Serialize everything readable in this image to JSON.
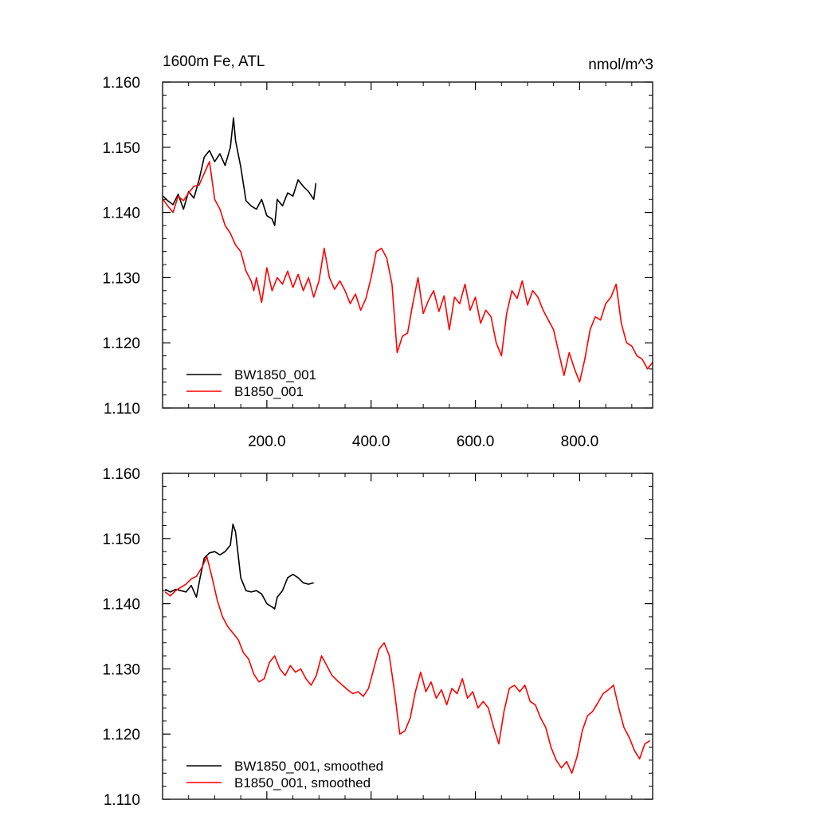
{
  "chart_data": [
    {
      "type": "line",
      "title": "1600m Fe, ATL",
      "units": "nmol/m^3",
      "xlim": [
        0,
        940
      ],
      "ylim": [
        1.11,
        1.16
      ],
      "yticks": [
        "1.160",
        "1.150",
        "1.140",
        "1.130",
        "1.120",
        "1.110"
      ],
      "xticks": [
        "200.0",
        "400.0",
        "600.0",
        "800.0"
      ],
      "legend_position": "bottom-left",
      "series": [
        {
          "name": "BW1850_001",
          "color": "#000000",
          "x": [
            1,
            10,
            20,
            30,
            40,
            50,
            60,
            70,
            80,
            90,
            100,
            110,
            120,
            130,
            136,
            140,
            150,
            160,
            170,
            180,
            190,
            200,
            210,
            215,
            220,
            230,
            240,
            250,
            260,
            270,
            280,
            290,
            294
          ],
          "y": [
            1.1425,
            1.1418,
            1.1412,
            1.1428,
            1.1405,
            1.1432,
            1.1422,
            1.145,
            1.1485,
            1.1495,
            1.1478,
            1.149,
            1.1472,
            1.15,
            1.1545,
            1.151,
            1.147,
            1.1418,
            1.141,
            1.1405,
            1.142,
            1.1395,
            1.139,
            1.138,
            1.142,
            1.141,
            1.143,
            1.1425,
            1.145,
            1.144,
            1.1432,
            1.142,
            1.1445
          ]
        },
        {
          "name": "B1850_001",
          "color": "#ff0000",
          "x": [
            1,
            10,
            20,
            30,
            40,
            50,
            60,
            70,
            80,
            90,
            100,
            110,
            120,
            130,
            140,
            150,
            160,
            170,
            175,
            180,
            190,
            200,
            210,
            220,
            230,
            240,
            250,
            260,
            270,
            280,
            290,
            300,
            310,
            320,
            330,
            340,
            350,
            360,
            370,
            380,
            390,
            400,
            410,
            420,
            430,
            440,
            450,
            460,
            470,
            480,
            490,
            500,
            510,
            520,
            530,
            540,
            550,
            560,
            570,
            580,
            590,
            600,
            610,
            620,
            630,
            640,
            650,
            660,
            670,
            680,
            690,
            700,
            710,
            720,
            730,
            740,
            750,
            760,
            770,
            780,
            790,
            800,
            810,
            820,
            830,
            840,
            850,
            860,
            870,
            880,
            890,
            900,
            910,
            920,
            930,
            940
          ],
          "y": [
            1.142,
            1.141,
            1.14,
            1.1425,
            1.1418,
            1.143,
            1.144,
            1.1442,
            1.146,
            1.1478,
            1.142,
            1.1405,
            1.138,
            1.1368,
            1.135,
            1.134,
            1.131,
            1.1295,
            1.128,
            1.13,
            1.1262,
            1.1315,
            1.128,
            1.13,
            1.129,
            1.131,
            1.1285,
            1.1305,
            1.128,
            1.13,
            1.127,
            1.1295,
            1.1345,
            1.13,
            1.1282,
            1.1295,
            1.128,
            1.126,
            1.1275,
            1.125,
            1.1268,
            1.13,
            1.134,
            1.1345,
            1.133,
            1.129,
            1.1185,
            1.121,
            1.1215,
            1.126,
            1.13,
            1.1245,
            1.1265,
            1.128,
            1.1248,
            1.1272,
            1.122,
            1.127,
            1.126,
            1.129,
            1.125,
            1.127,
            1.123,
            1.125,
            1.124,
            1.12,
            1.118,
            1.1245,
            1.128,
            1.1268,
            1.1295,
            1.1258,
            1.128,
            1.127,
            1.125,
            1.1235,
            1.122,
            1.1185,
            1.115,
            1.1185,
            1.116,
            1.114,
            1.1175,
            1.122,
            1.124,
            1.1235,
            1.126,
            1.127,
            1.129,
            1.123,
            1.12,
            1.1195,
            1.118,
            1.1175,
            1.116,
            1.117
          ]
        }
      ]
    },
    {
      "type": "line",
      "xlim": [
        0,
        940
      ],
      "ylim": [
        1.11,
        1.16
      ],
      "yticks": [
        "1.160",
        "1.150",
        "1.140",
        "1.130",
        "1.120",
        "1.110"
      ],
      "legend_position": "bottom-left",
      "series": [
        {
          "name": "BW1850_001, smoothed",
          "color": "#000000",
          "x": [
            5,
            15,
            25,
            35,
            45,
            55,
            65,
            72,
            80,
            90,
            100,
            110,
            120,
            130,
            135,
            140,
            150,
            160,
            170,
            180,
            190,
            200,
            210,
            215,
            220,
            230,
            240,
            250,
            260,
            270,
            280,
            290
          ],
          "y": [
            1.1422,
            1.1418,
            1.1422,
            1.142,
            1.1418,
            1.1428,
            1.141,
            1.144,
            1.147,
            1.1478,
            1.148,
            1.1475,
            1.148,
            1.149,
            1.1522,
            1.151,
            1.144,
            1.142,
            1.1418,
            1.142,
            1.1415,
            1.14,
            1.1395,
            1.1392,
            1.141,
            1.142,
            1.144,
            1.1445,
            1.144,
            1.1432,
            1.143,
            1.1432
          ]
        },
        {
          "name": "B1850_001, smoothed",
          "color": "#ff0000",
          "x": [
            5,
            15,
            25,
            35,
            45,
            55,
            65,
            75,
            85,
            95,
            105,
            115,
            125,
            135,
            145,
            155,
            165,
            175,
            185,
            195,
            205,
            215,
            225,
            235,
            245,
            255,
            265,
            275,
            285,
            295,
            305,
            315,
            325,
            335,
            345,
            355,
            365,
            375,
            385,
            395,
            405,
            415,
            425,
            435,
            445,
            455,
            465,
            475,
            485,
            495,
            505,
            515,
            525,
            535,
            545,
            555,
            565,
            575,
            585,
            595,
            605,
            615,
            625,
            635,
            645,
            655,
            665,
            675,
            685,
            695,
            705,
            715,
            725,
            735,
            745,
            755,
            765,
            775,
            785,
            795,
            805,
            815,
            825,
            835,
            845,
            855,
            865,
            875,
            885,
            895,
            905,
            915,
            925,
            935
          ],
          "y": [
            1.1418,
            1.1412,
            1.142,
            1.1425,
            1.143,
            1.1438,
            1.1442,
            1.1455,
            1.1472,
            1.144,
            1.1405,
            1.138,
            1.1365,
            1.1355,
            1.1345,
            1.1325,
            1.1315,
            1.1292,
            1.128,
            1.1285,
            1.131,
            1.132,
            1.13,
            1.129,
            1.1305,
            1.1295,
            1.13,
            1.1285,
            1.1275,
            1.129,
            1.132,
            1.1305,
            1.129,
            1.1282,
            1.1275,
            1.1268,
            1.1262,
            1.1265,
            1.1258,
            1.127,
            1.13,
            1.133,
            1.134,
            1.132,
            1.1265,
            1.12,
            1.1205,
            1.1225,
            1.1265,
            1.1295,
            1.1265,
            1.128,
            1.1255,
            1.1268,
            1.1245,
            1.127,
            1.1262,
            1.1285,
            1.1255,
            1.1265,
            1.124,
            1.125,
            1.124,
            1.121,
            1.1185,
            1.1235,
            1.127,
            1.1275,
            1.1265,
            1.1275,
            1.125,
            1.1245,
            1.1225,
            1.121,
            1.118,
            1.116,
            1.1148,
            1.1158,
            1.114,
            1.1165,
            1.1205,
            1.1228,
            1.1235,
            1.1248,
            1.1262,
            1.1268,
            1.1275,
            1.124,
            1.121,
            1.1195,
            1.1175,
            1.1162,
            1.1185,
            1.119
          ]
        }
      ]
    }
  ]
}
